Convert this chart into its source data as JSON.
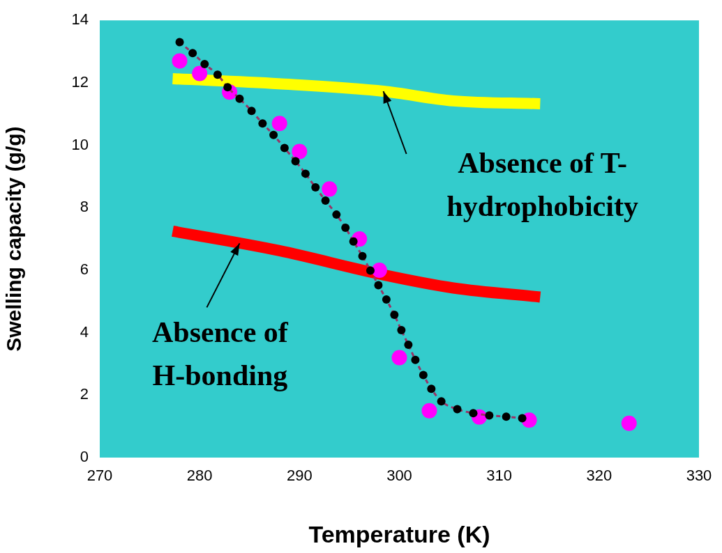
{
  "chart_data": {
    "type": "scatter",
    "xlabel": "Temperature (K)",
    "ylabel": "Swelling capacity (g/g)",
    "xlim": [
      270,
      330
    ],
    "xticks": [
      270,
      280,
      290,
      300,
      310,
      320,
      330
    ],
    "ylim": [
      0,
      14
    ],
    "yticks": [
      0,
      2,
      4,
      6,
      8,
      10,
      12,
      14
    ],
    "grid": false,
    "legend": false,
    "series": [
      {
        "type": "line",
        "color": "#ffff00",
        "marker": "none",
        "line_style": "solid",
        "x": [
          277.3,
          287.9,
          298.4,
          305.4,
          314.1
        ],
        "values": [
          12.13,
          11.97,
          11.73,
          11.42,
          11.33
        ]
      },
      {
        "type": "line",
        "color": "#ff0000",
        "marker": "none",
        "line_style": "solid",
        "x": [
          277.3,
          287.9,
          298.4,
          305.4,
          314.1
        ],
        "values": [
          7.25,
          6.63,
          5.85,
          5.43,
          5.14
        ]
      },
      {
        "type": "scatter",
        "color": "#ff00ff",
        "marker": "circle",
        "x": [
          278,
          280,
          283,
          288,
          290,
          293,
          296,
          298,
          300,
          303,
          308,
          313,
          323
        ],
        "values": [
          12.7,
          12.3,
          11.7,
          10.7,
          9.8,
          8.6,
          7.0,
          6.0,
          3.2,
          1.5,
          1.3,
          1.2,
          1.1
        ]
      },
      {
        "type": "line",
        "color": "#000000",
        "marker": "circle",
        "line_style": "dashed",
        "x": [
          278,
          279.3,
          280.5,
          281.8,
          282.8,
          284,
          285.2,
          286.3,
          287.4,
          288.5,
          289.6,
          290.6,
          291.6,
          292.6,
          293.7,
          294.6,
          295.4,
          296.3,
          297.1,
          297.9,
          298.7,
          299.5,
          300.2,
          300.9,
          301.6,
          302.4,
          303.2,
          304.2,
          305.8,
          307.4,
          309,
          310.7,
          312.3
        ],
        "values": [
          13.3,
          12.95,
          12.6,
          12.26,
          11.86,
          11.49,
          11.1,
          10.7,
          10.33,
          9.91,
          9.49,
          9.09,
          8.65,
          8.23,
          7.78,
          7.36,
          6.92,
          6.45,
          5.99,
          5.52,
          5.06,
          4.57,
          4.08,
          3.61,
          3.13,
          2.64,
          2.2,
          1.8,
          1.55,
          1.42,
          1.35,
          1.31,
          1.26
        ]
      }
    ],
    "annotations": [
      {
        "text": "Absence of T-\nhydrophobicity",
        "x": 298.4,
        "y": 11.73
      },
      {
        "text": "Absence of\nH-bonding",
        "x": 284,
        "y": 6.86
      }
    ]
  }
}
